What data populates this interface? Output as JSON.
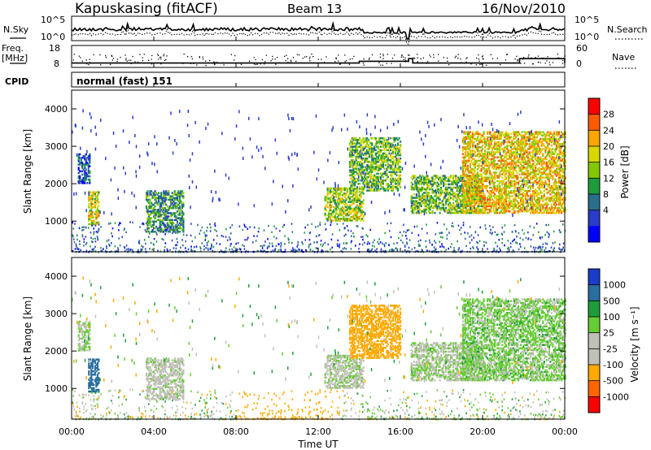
{
  "header": {
    "station": "Kapuskasing (fitACF)",
    "beam": "Beam 13",
    "date": "16/Nov/2010"
  },
  "noise_panel": {
    "left_label": "N.Sky",
    "right_label": "N.Search",
    "left_ticks": [
      "10^5",
      "10^0"
    ],
    "right_ticks": [
      "10^5",
      "10^0"
    ]
  },
  "freq_panel": {
    "left_label_1": "Freq.",
    "left_label_2": "[MHz]",
    "right_label": "Nave",
    "left_ticks": [
      "18",
      "8"
    ],
    "right_ticks": [
      "60",
      "0"
    ]
  },
  "cpid_panel": {
    "label": "CPID",
    "text": "normal (fast) 151"
  },
  "power_panel": {
    "ylabel": "Slant Range [km]",
    "yticks": [
      "4000",
      "3000",
      "2000",
      "1000"
    ],
    "colorbar_label": "Power [dB]",
    "colorbar_ticks": [
      "28",
      "24",
      "20",
      "16",
      "12",
      "8",
      "4"
    ],
    "colorbar_colors": [
      "#ff0000",
      "#ff5a00",
      "#ffa500",
      "#d8d800",
      "#84c800",
      "#1e9c3c",
      "#2a6e8c",
      "#2a3cc8",
      "#0000ff"
    ]
  },
  "velocity_panel": {
    "ylabel": "Slant Range [km]",
    "yticks": [
      "4000",
      "3000",
      "2000",
      "1000"
    ],
    "colorbar_label": "Velocity [m s⁻¹]",
    "colorbar_ticks": [
      "1000",
      "500",
      "100",
      "25",
      "-25",
      "-100",
      "-500",
      "-1000"
    ],
    "colorbar_colors": [
      "#1a3cc8",
      "#2a6ea0",
      "#1e9c3c",
      "#66cc33",
      "#c0c0b8",
      "#c0c0b8",
      "#ffaa00",
      "#ff6600",
      "#ff0000"
    ]
  },
  "xaxis": {
    "ticks": [
      "00:00",
      "04:00",
      "08:00",
      "12:00",
      "16:00",
      "20:00",
      "00:00"
    ],
    "label": "Time UT"
  },
  "chart_data": {
    "type": "heatmap",
    "title": "Kapuskasing (fitACF)  Beam 13  16/Nov/2010",
    "xlabel": "Time UT",
    "ylabel": "Slant Range [km]",
    "x_range_hours": [
      0,
      24
    ],
    "y_range_km": [
      180,
      4500
    ],
    "panels": [
      "Power [dB]",
      "Velocity [m s⁻¹]"
    ],
    "power_scale_db": [
      0,
      30
    ],
    "velocity_scale": [
      -1000,
      1000
    ],
    "echo_regions": [
      {
        "t0": 0.3,
        "t1": 0.9,
        "r0": 2000,
        "r1": 2800,
        "power": 6,
        "velocity": 25
      },
      {
        "t0": 0.8,
        "t1": 1.3,
        "r0": 900,
        "r1": 1800,
        "power": 18,
        "velocity": 600
      },
      {
        "t0": 3.6,
        "t1": 5.4,
        "r0": 700,
        "r1": 1800,
        "power": 10,
        "velocity": -20
      },
      {
        "t0": 12.3,
        "t1": 14.2,
        "r0": 1000,
        "r1": 1900,
        "power": 16,
        "velocity": 0
      },
      {
        "t0": 13.5,
        "t1": 16.0,
        "r0": 1800,
        "r1": 3200,
        "power": 14,
        "velocity": -200
      },
      {
        "t0": 16.5,
        "t1": 20.0,
        "r0": 1200,
        "r1": 2200,
        "power": 14,
        "velocity": 10
      },
      {
        "t0": 19.0,
        "t1": 24.0,
        "r0": 1200,
        "r1": 3400,
        "power": 20,
        "velocity": 50
      }
    ],
    "frequency_mhz": {
      "t": [
        0,
        11.0,
        14.0,
        16.4,
        16.6,
        21.8,
        24
      ],
      "f": [
        10,
        10,
        10.8,
        12,
        10,
        12,
        10
      ]
    }
  }
}
